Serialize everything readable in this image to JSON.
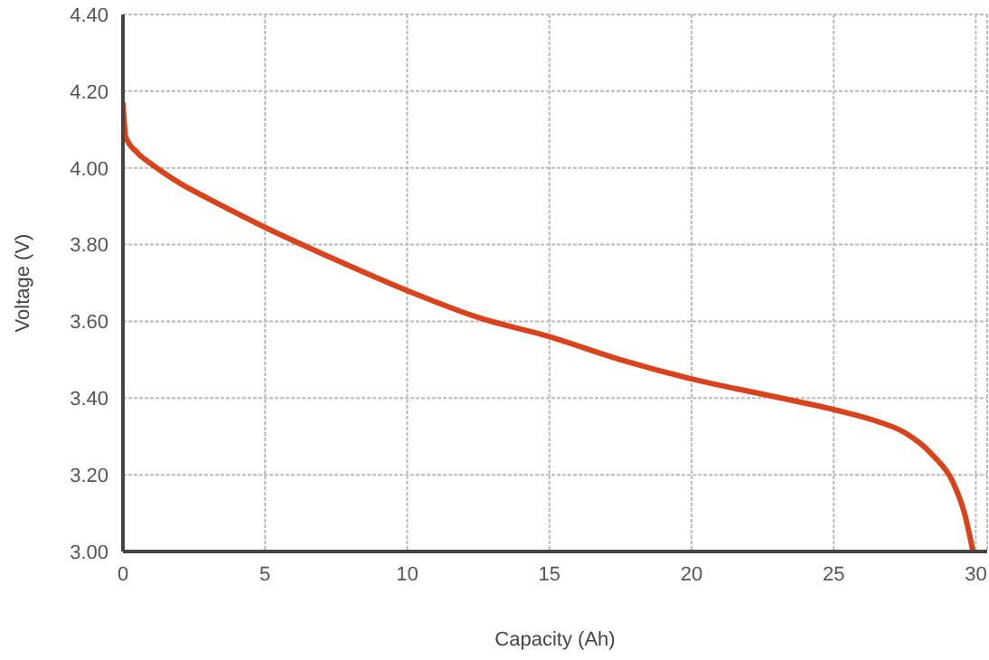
{
  "chart_data": {
    "type": "line",
    "xlabel": "Capacity (Ah)",
    "ylabel": "Voltage (V)",
    "x": [
      0,
      0.1,
      0.5,
      1,
      2,
      3,
      5,
      7.5,
      10,
      12.5,
      15,
      17.5,
      20,
      22.5,
      25,
      26.5,
      27.5,
      28.5,
      29.2,
      29.6,
      29.9
    ],
    "series": [
      {
        "color": "#d9421b",
        "values": [
          4.17,
          4.08,
          4.04,
          4.01,
          3.96,
          3.92,
          3.845,
          3.76,
          3.68,
          3.61,
          3.56,
          3.5,
          3.45,
          3.41,
          3.37,
          3.34,
          3.31,
          3.25,
          3.18,
          3.1,
          3.0
        ]
      }
    ],
    "xlim": [
      0,
      30.4
    ],
    "xticks": [
      0,
      5,
      10,
      15,
      20,
      25,
      30
    ],
    "ylim": [
      3.0,
      4.4
    ],
    "yticks": [
      {
        "value": 3.0,
        "label": "3.00"
      },
      {
        "value": 3.2,
        "label": "3.20"
      },
      {
        "value": 3.4,
        "label": "3.40"
      },
      {
        "value": 3.6,
        "label": "3.60"
      },
      {
        "value": 3.8,
        "label": "3.80"
      },
      {
        "value": 4.0,
        "label": "4.00"
      },
      {
        "value": 4.2,
        "label": "4.20"
      },
      {
        "value": 4.4,
        "label": "4.40"
      }
    ],
    "grid": true,
    "marker": "none",
    "line_style": "solid",
    "legend": false
  }
}
